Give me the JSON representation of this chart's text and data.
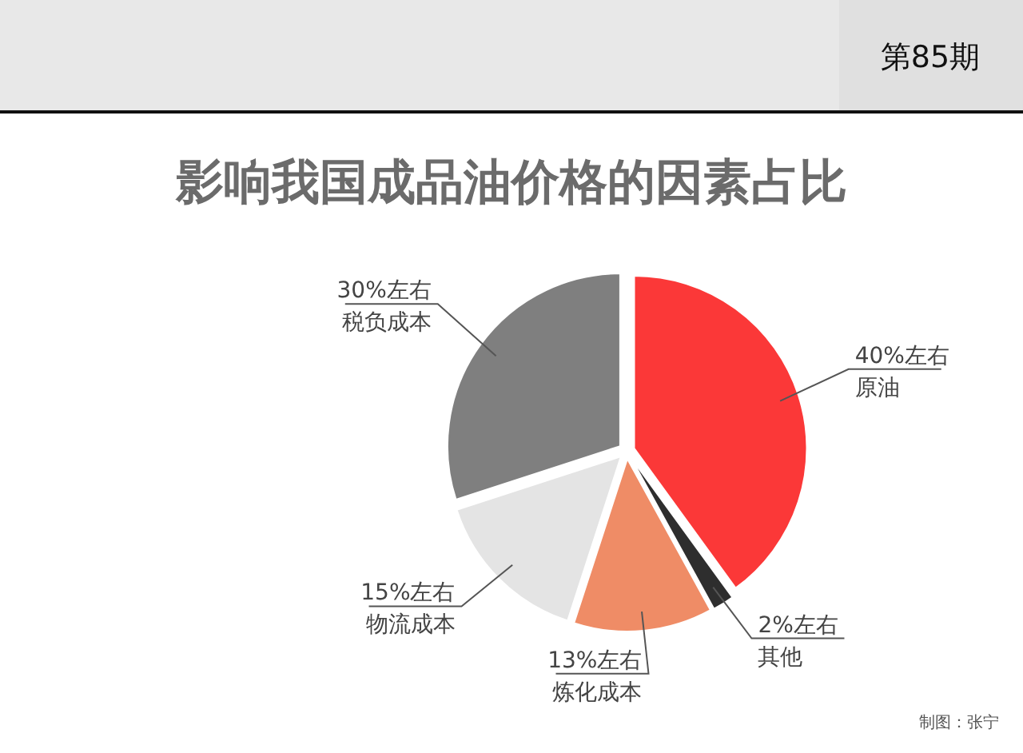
{
  "chart_data": {
    "type": "pie",
    "title": "影响我国成品油价格的因素占比",
    "categories": [
      "原油",
      "其他",
      "炼化成本",
      "物流成本",
      "税负成本"
    ],
    "values": [
      40,
      2,
      13,
      15,
      30
    ],
    "colors": [
      "#fb3838",
      "#2e2e2e",
      "#ef8c66",
      "#e4e4e4",
      "#7f7f7f"
    ],
    "value_labels": [
      "40%左右",
      "2%左右",
      "13%左右",
      "15%左右",
      "30%左右"
    ],
    "annotations": [
      "第85期",
      "制图：张宁"
    ]
  }
}
